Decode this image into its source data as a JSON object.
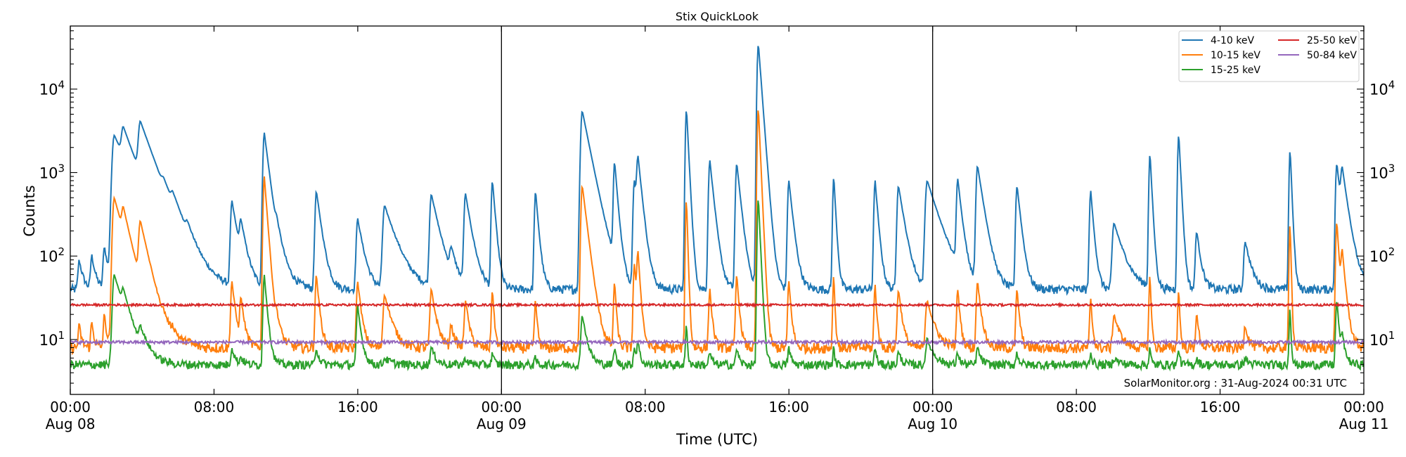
{
  "chart_data": {
    "type": "line",
    "title": "Stix QuickLook",
    "xlabel": "Time (UTC)",
    "ylabel": "Counts",
    "yscale": "log",
    "ylim": [
      2.2,
      57000
    ],
    "xlim_hours": [
      0,
      72
    ],
    "x_ticks": [
      {
        "hour": 0,
        "label": "00:00",
        "sublabel": "Aug 08"
      },
      {
        "hour": 8,
        "label": "08:00",
        "sublabel": ""
      },
      {
        "hour": 16,
        "label": "16:00",
        "sublabel": ""
      },
      {
        "hour": 24,
        "label": "00:00",
        "sublabel": "Aug 09"
      },
      {
        "hour": 32,
        "label": "08:00",
        "sublabel": ""
      },
      {
        "hour": 40,
        "label": "16:00",
        "sublabel": ""
      },
      {
        "hour": 48,
        "label": "00:00",
        "sublabel": "Aug 10"
      },
      {
        "hour": 56,
        "label": "08:00",
        "sublabel": ""
      },
      {
        "hour": 64,
        "label": "16:00",
        "sublabel": ""
      },
      {
        "hour": 72,
        "label": "00:00",
        "sublabel": "Aug 11"
      }
    ],
    "y_ticks": [
      {
        "value": 10,
        "base": "10",
        "exp": "1"
      },
      {
        "value": 100,
        "base": "10",
        "exp": "2"
      },
      {
        "value": 1000,
        "base": "10",
        "exp": "3"
      },
      {
        "value": 10000,
        "base": "10",
        "exp": "4"
      }
    ],
    "day_boundaries_hours": [
      24,
      48
    ],
    "legend_position": "top-right",
    "annotation": "SolarMonitor.org : 31-Aug-2024 00:31 UTC",
    "series": [
      {
        "name": "4-10 keV",
        "color": "#1f77b4",
        "baseline": 40,
        "noise": 0.12,
        "peak_index": 0
      },
      {
        "name": "10-15 keV",
        "color": "#ff7f0e",
        "baseline": 8,
        "noise": 0.15,
        "peak_index": 1
      },
      {
        "name": "15-25 keV",
        "color": "#2ca02c",
        "baseline": 5,
        "noise": 0.12,
        "peak_index": 2
      },
      {
        "name": "25-50 keV",
        "color": "#d62728",
        "baseline": 26,
        "noise": 0.03,
        "peak_index": -1
      },
      {
        "name": "50-84 keV",
        "color": "#9467bd",
        "baseline": 9.3,
        "noise": 0.04,
        "peak_index": -1
      }
    ],
    "peaks_columns": [
      "hour",
      "4-10 keV",
      "10-15 keV",
      "15-25 keV",
      "decay_hours"
    ],
    "peaks": [
      [
        0.5,
        90,
        15,
        5,
        0.2
      ],
      [
        1.2,
        100,
        16,
        5,
        0.2
      ],
      [
        1.9,
        130,
        20,
        5,
        0.2
      ],
      [
        2.45,
        2800,
        500,
        60,
        0.9
      ],
      [
        2.95,
        2000,
        200,
        20,
        0.6
      ],
      [
        3.9,
        3200,
        220,
        10,
        0.7
      ],
      [
        5.2,
        200,
        10,
        5,
        0.8
      ],
      [
        5.7,
        180,
        10,
        5,
        0.5
      ],
      [
        6.5,
        100,
        9,
        5,
        0.4
      ],
      [
        9.0,
        450,
        50,
        8,
        0.3
      ],
      [
        9.5,
        200,
        30,
        6,
        0.3
      ],
      [
        10.8,
        3000,
        900,
        60,
        0.25
      ],
      [
        11.5,
        120,
        15,
        5,
        0.5
      ],
      [
        13.7,
        600,
        60,
        8,
        0.25
      ],
      [
        16.0,
        280,
        50,
        25,
        0.3
      ],
      [
        17.5,
        400,
        35,
        6,
        0.6
      ],
      [
        20.1,
        550,
        40,
        8,
        0.4
      ],
      [
        21.2,
        100,
        15,
        5,
        0.3
      ],
      [
        22.0,
        550,
        30,
        6,
        0.3
      ],
      [
        23.5,
        800,
        40,
        7,
        0.15
      ],
      [
        25.9,
        600,
        30,
        6,
        0.15
      ],
      [
        28.5,
        5500,
        700,
        20,
        0.4
      ],
      [
        30.3,
        1300,
        50,
        8,
        0.15
      ],
      [
        31.4,
        800,
        80,
        8,
        0.2
      ],
      [
        31.6,
        1300,
        100,
        9,
        0.2
      ],
      [
        34.3,
        5800,
        480,
        15,
        0.1
      ],
      [
        35.6,
        1400,
        40,
        7,
        0.2
      ],
      [
        37.1,
        1300,
        60,
        8,
        0.2
      ],
      [
        38.3,
        35000,
        6000,
        500,
        0.15
      ],
      [
        40.0,
        800,
        50,
        8,
        0.2
      ],
      [
        42.5,
        900,
        60,
        8,
        0.1
      ],
      [
        44.8,
        800,
        45,
        8,
        0.15
      ],
      [
        46.1,
        700,
        40,
        7,
        0.3
      ],
      [
        47.7,
        800,
        30,
        10,
        0.6
      ],
      [
        49.4,
        800,
        40,
        7,
        0.2
      ],
      [
        50.5,
        1200,
        50,
        8,
        0.3
      ],
      [
        52.7,
        700,
        40,
        7,
        0.2
      ],
      [
        56.8,
        600,
        30,
        7,
        0.15
      ],
      [
        58.1,
        250,
        20,
        6,
        0.5
      ],
      [
        60.1,
        1700,
        60,
        8,
        0.1
      ],
      [
        61.7,
        2900,
        40,
        8,
        0.1
      ],
      [
        62.7,
        200,
        20,
        6,
        0.2
      ],
      [
        65.4,
        150,
        15,
        6,
        0.3
      ],
      [
        67.9,
        1900,
        250,
        25,
        0.08
      ],
      [
        70.5,
        1300,
        260,
        30,
        0.2
      ],
      [
        70.8,
        900,
        100,
        10,
        0.3
      ]
    ]
  }
}
